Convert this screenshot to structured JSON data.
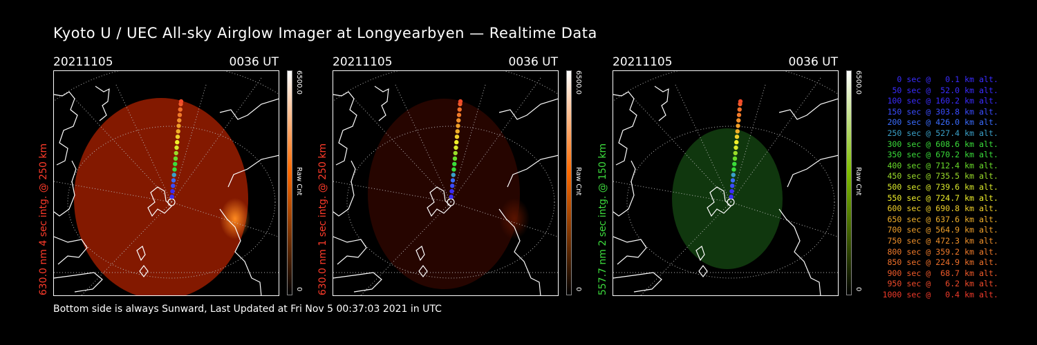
{
  "title": "Kyoto U / UEC All-sky Airglow Imager at Longyearbyen — Realtime Data",
  "footer": "Bottom side is always Sunward, Last Updated at Fri Nov  5 00:37:03 2021 in UTC",
  "panels": [
    {
      "date": "20211105",
      "time": "0036 UT",
      "ylabel": "630.0 nm  4 sec intg. @ 250 km",
      "ylabel_color": "#ff3b2a",
      "glow_color": "#8a1a00",
      "brightness": "bright",
      "cbar_max": "6500.0",
      "cbar_unit": "Raw Cnt",
      "cbar_min": "0",
      "cbar_color": "#ff6a00"
    },
    {
      "date": "20211105",
      "time": "0036 UT",
      "ylabel": "630.0 nm  1 sec intg. @ 250 km",
      "ylabel_color": "#ff3b2a",
      "glow_color": "#2a0600",
      "brightness": "dim",
      "cbar_max": "6500.0",
      "cbar_unit": "Raw Cnt",
      "cbar_min": "0",
      "cbar_color": "#ff6a00"
    },
    {
      "date": "20211105",
      "time": "0036 UT",
      "ylabel": "557.7 nm  2 sec intg. @ 150 km",
      "ylabel_color": "#3ddc3d",
      "glow_color": "#123d10",
      "brightness": "green",
      "cbar_max": "6500.0",
      "cbar_unit": "Raw Cnt",
      "cbar_min": "0",
      "cbar_color": "#7fbf00"
    }
  ],
  "legend": [
    {
      "text": "0 sec @   0.1 km alt.",
      "color": "#3a2cff"
    },
    {
      "text": "50 sec @  52.0 km alt.",
      "color": "#3a2cff"
    },
    {
      "text": "100 sec @ 160.2 km alt.",
      "color": "#3a2cff"
    },
    {
      "text": "150 sec @ 303.8 km alt.",
      "color": "#3a4cff"
    },
    {
      "text": "200 sec @ 426.0 km alt.",
      "color": "#3a6cff"
    },
    {
      "text": "250 sec @ 527.4 km alt.",
      "color": "#3aa0c8"
    },
    {
      "text": "300 sec @ 608.6 km alt.",
      "color": "#3adc3a"
    },
    {
      "text": "350 sec @ 670.2 km alt.",
      "color": "#3adc3a"
    },
    {
      "text": "400 sec @ 712.4 km alt.",
      "color": "#6adc2a"
    },
    {
      "text": "450 sec @ 735.5 km alt.",
      "color": "#9adc2a"
    },
    {
      "text": "500 sec @ 739.6 km alt.",
      "color": "#d8e82a"
    },
    {
      "text": "550 sec @ 724.7 km alt.",
      "color": "#f0f02a"
    },
    {
      "text": "600 sec @ 690.8 km alt.",
      "color": "#f0d02a"
    },
    {
      "text": "650 sec @ 637.6 km alt.",
      "color": "#f0b02a"
    },
    {
      "text": "700 sec @ 564.9 km alt.",
      "color": "#f0a02a"
    },
    {
      "text": "750 sec @ 472.3 km alt.",
      "color": "#f0902a"
    },
    {
      "text": "800 sec @ 359.2 km alt.",
      "color": "#f07a2a"
    },
    {
      "text": "850 sec @ 224.9 km alt.",
      "color": "#f0702a"
    },
    {
      "text": "900 sec @  68.7 km alt.",
      "color": "#f05a2a"
    },
    {
      "text": "950 sec @   6.2 km alt.",
      "color": "#f04a2a"
    },
    {
      "text": "1000 sec @   0.4 km alt.",
      "color": "#f03a2a"
    }
  ]
}
